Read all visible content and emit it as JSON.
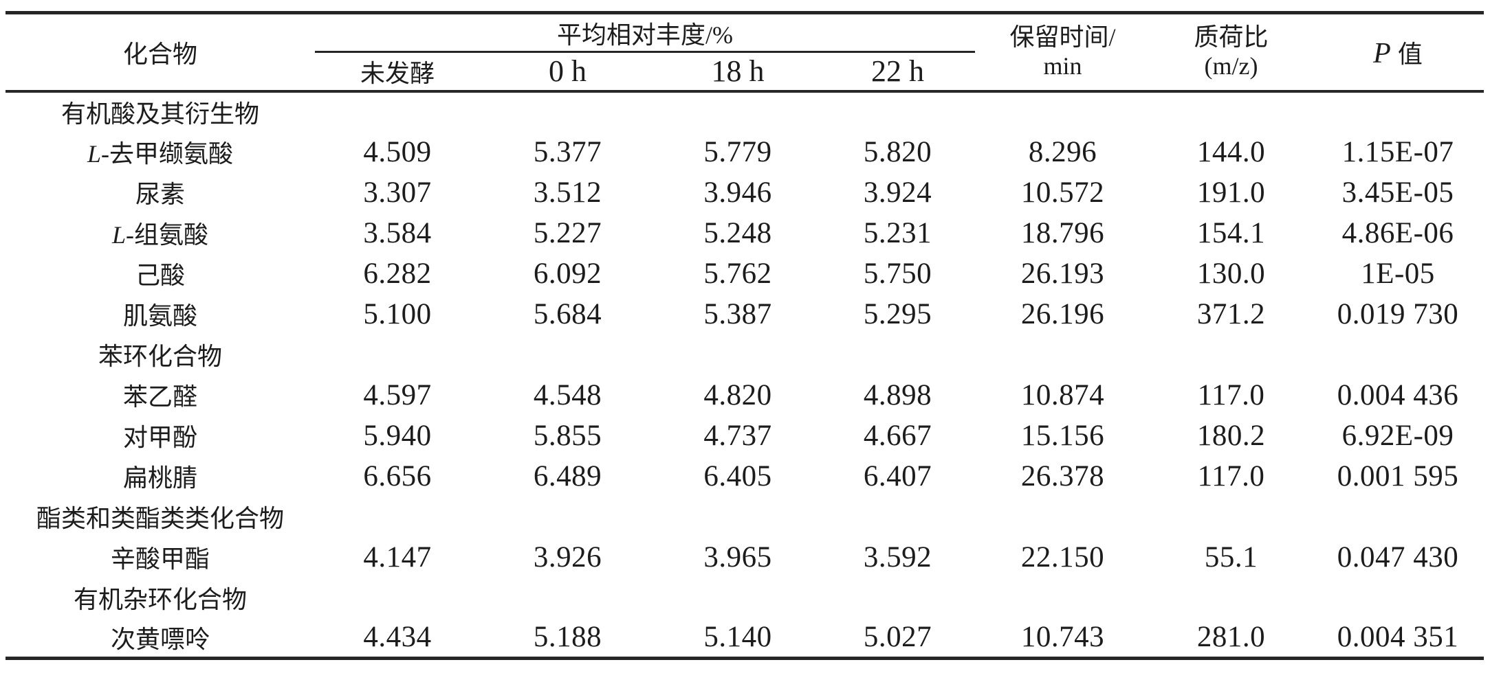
{
  "table": {
    "columns": {
      "compound": "化合物",
      "abundance_group": "平均相对丰度/%",
      "abundance_subs": [
        "未发酵",
        "0 h",
        "18 h",
        "22 h"
      ],
      "retention_line1": "保留时间/",
      "retention_line2": "min",
      "mz_line1": "质荷比",
      "mz_line2": "(m/z)",
      "p_italic": "P",
      "p_rest": "值"
    },
    "rows": [
      {
        "type": "category",
        "label": "有机酸及其衍生物"
      },
      {
        "type": "compound",
        "prefix": "L-",
        "name": "去甲缬氨酸",
        "values": [
          "4.509",
          "5.377",
          "5.779",
          "5.820",
          "8.296",
          "144.0",
          "1.15E-07"
        ]
      },
      {
        "type": "compound",
        "prefix": "",
        "name": "尿素",
        "values": [
          "3.307",
          "3.512",
          "3.946",
          "3.924",
          "10.572",
          "191.0",
          "3.45E-05"
        ]
      },
      {
        "type": "compound",
        "prefix": "L-",
        "name": "组氨酸",
        "values": [
          "3.584",
          "5.227",
          "5.248",
          "5.231",
          "18.796",
          "154.1",
          "4.86E-06"
        ]
      },
      {
        "type": "compound",
        "prefix": "",
        "name": "己酸",
        "values": [
          "6.282",
          "6.092",
          "5.762",
          "5.750",
          "26.193",
          "130.0",
          "1E-05"
        ]
      },
      {
        "type": "compound",
        "prefix": "",
        "name": "肌氨酸",
        "values": [
          "5.100",
          "5.684",
          "5.387",
          "5.295",
          "26.196",
          "371.2",
          "0.019 730"
        ]
      },
      {
        "type": "category",
        "label": "苯环化合物"
      },
      {
        "type": "compound",
        "prefix": "",
        "name": "苯乙醛",
        "values": [
          "4.597",
          "4.548",
          "4.820",
          "4.898",
          "10.874",
          "117.0",
          "0.004 436"
        ]
      },
      {
        "type": "compound",
        "prefix": "",
        "name": "对甲酚",
        "values": [
          "5.940",
          "5.855",
          "4.737",
          "4.667",
          "15.156",
          "180.2",
          "6.92E-09"
        ]
      },
      {
        "type": "compound",
        "prefix": "",
        "name": "扁桃腈",
        "values": [
          "6.656",
          "6.489",
          "6.405",
          "6.407",
          "26.378",
          "117.0",
          "0.001 595"
        ]
      },
      {
        "type": "category",
        "label": "酯类和类酯类类化合物"
      },
      {
        "type": "compound",
        "prefix": "",
        "name": "辛酸甲酯",
        "values": [
          "4.147",
          "3.926",
          "3.965",
          "3.592",
          "22.150",
          "55.1",
          "0.047 430"
        ]
      },
      {
        "type": "category",
        "label": "有机杂环化合物"
      },
      {
        "type": "compound",
        "prefix": "",
        "name": "次黄嘌呤",
        "values": [
          "4.434",
          "5.188",
          "5.140",
          "5.027",
          "10.743",
          "281.0",
          "0.004 351"
        ]
      }
    ]
  }
}
